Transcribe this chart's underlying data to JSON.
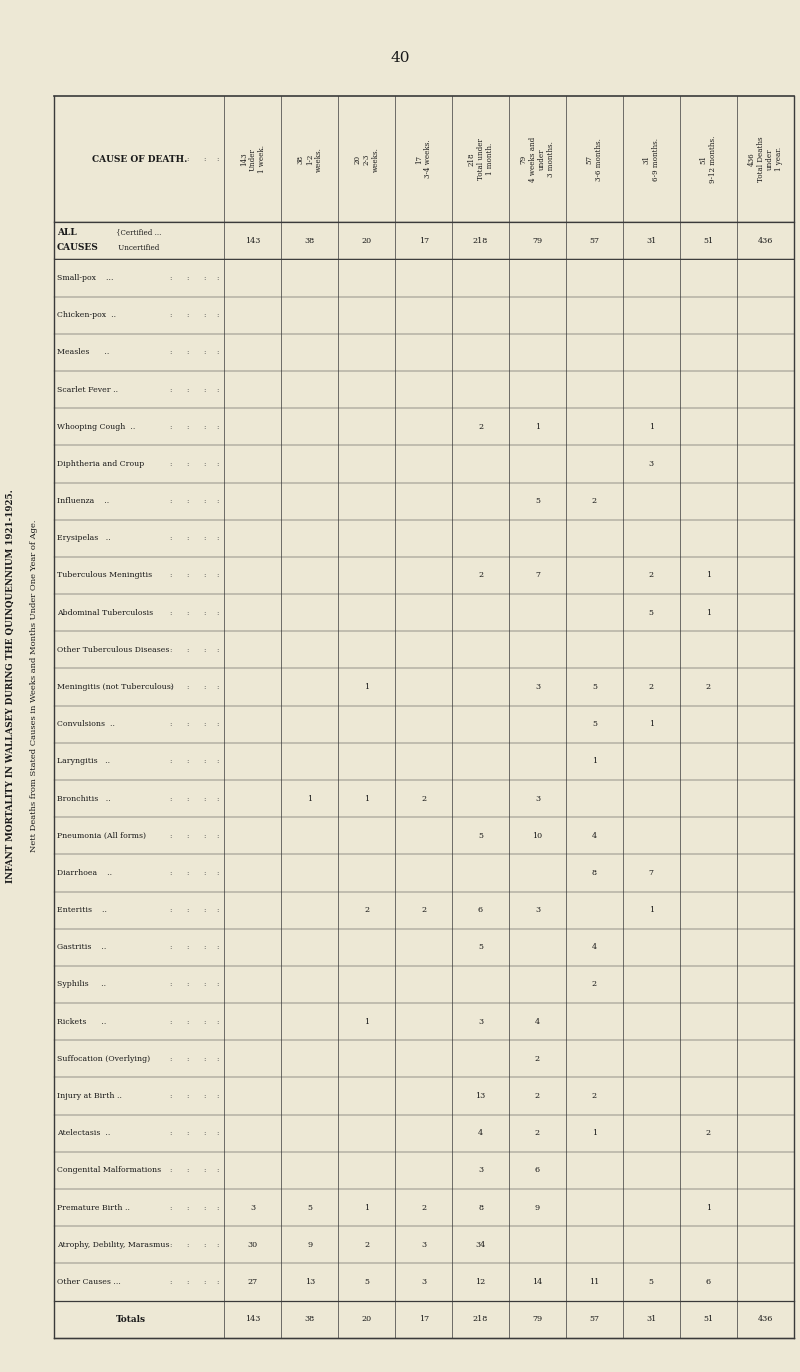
{
  "page_number": "40",
  "bg_color": "#ede8d5",
  "title_side1": "INFANT MORTALITY IN WALLASEY DURING THE QUINQUENNIUM 1921-1925.",
  "title_side2": "Nett Deaths from Stated Causes in Weeks and Months Under One Year of Age.",
  "col_headers": [
    "Under\n1 week.",
    "1-2\nweeks.",
    "2-3\nweeks.",
    "3-4 weeks.",
    "Total under\n1 month.",
    "4 weeks and\nunder\n3 months.",
    "3-6 months.",
    "6-9 months.",
    "9-12 months.",
    "Total Deaths\nunder\n1 year."
  ],
  "col_totals_header": [
    143,
    38,
    20,
    17,
    218,
    79,
    57,
    31,
    51,
    436
  ],
  "rows": [
    {
      "label": "ALL\nCAUSES",
      "sublabels": [
        "{Certified ...",
        " Uncertified"
      ],
      "bold": true,
      "bracket": false,
      "data": [
        143,
        38,
        20,
        17,
        218,
        79,
        57,
        31,
        51,
        436
      ]
    },
    {
      "label": "Small-pox    ...",
      "bold": false,
      "bracket": false,
      "dots": true,
      "data": [
        "",
        "",
        "",
        "",
        "",
        "",
        "",
        "",
        "",
        ""
      ]
    },
    {
      "label": "Chicken-pox  ..",
      "bold": false,
      "bracket": "open",
      "dots": true,
      "data": [
        "",
        "",
        "",
        "",
        "",
        "",
        "",
        "",
        "",
        ""
      ]
    },
    {
      "label": "Measles      ..",
      "bold": false,
      "bracket": false,
      "dots": true,
      "data": [
        "",
        "",
        "",
        "",
        "",
        "",
        "",
        "",
        "",
        ""
      ]
    },
    {
      "label": "Scarlet Fever ..",
      "bold": false,
      "bracket": "close",
      "dots": true,
      "data": [
        "",
        "",
        "",
        "",
        "",
        "",
        "",
        "",
        "",
        ""
      ]
    },
    {
      "label": "Whooping Cough  ..",
      "bold": false,
      "bracket": false,
      "dots": true,
      "data": [
        "",
        "",
        "",
        "",
        2,
        1,
        "",
        1,
        "",
        ""
      ]
    },
    {
      "label": "Diphtheria and Croup",
      "bold": false,
      "bracket": false,
      "dots": true,
      "data": [
        "",
        "",
        "",
        "",
        "",
        "",
        "",
        3,
        "",
        ""
      ]
    },
    {
      "label": "Influenza    ..",
      "bold": false,
      "bracket": false,
      "dots": true,
      "data": [
        "",
        "",
        "",
        "",
        "",
        5,
        2,
        "",
        "",
        ""
      ]
    },
    {
      "label": "Erysipelas   ..",
      "bold": false,
      "bracket": false,
      "dots": true,
      "data": [
        "",
        "",
        "",
        "",
        "",
        "",
        "",
        "",
        "",
        ""
      ]
    },
    {
      "label": "Tuberculous Meningitis",
      "bold": false,
      "bracket": "open",
      "dots": false,
      "data": [
        "",
        "",
        "",
        "",
        2,
        7,
        "",
        2,
        1,
        ""
      ]
    },
    {
      "label": "Abdominal Tuberculosis",
      "bold": false,
      "bracket": false,
      "dots": false,
      "data": [
        "",
        "",
        "",
        "",
        "",
        "",
        "",
        5,
        1,
        ""
      ]
    },
    {
      "label": "Other Tuberculous Diseases",
      "bold": false,
      "bracket": "close",
      "dots": false,
      "data": [
        "",
        "",
        "",
        "",
        "",
        "",
        "",
        "",
        "",
        ""
      ]
    },
    {
      "label": "Meningitis (not Tuberculous)",
      "bold": false,
      "bracket": false,
      "dots": false,
      "data": [
        "",
        "",
        1,
        "",
        "",
        3,
        5,
        2,
        2,
        ""
      ]
    },
    {
      "label": "Convulsions  ..",
      "bold": false,
      "bracket": false,
      "dots": true,
      "data": [
        "",
        "",
        "",
        "",
        "",
        "",
        5,
        1,
        "",
        ""
      ]
    },
    {
      "label": "Laryngitis   ..",
      "bold": false,
      "bracket": false,
      "dots": true,
      "data": [
        "",
        "",
        "",
        "",
        "",
        "",
        1,
        "",
        "",
        ""
      ]
    },
    {
      "label": "Bronchitis   ..",
      "bold": false,
      "bracket": false,
      "dots": true,
      "data": [
        "",
        1,
        1,
        2,
        "",
        3,
        "",
        "",
        "",
        ""
      ]
    },
    {
      "label": "Pneumonia (All forms)",
      "bold": false,
      "bracket": "open",
      "dots": false,
      "data": [
        "",
        "",
        "",
        "",
        5,
        10,
        4,
        "",
        "",
        ""
      ]
    },
    {
      "label": "Diarrhoea    ..",
      "bold": false,
      "bracket": false,
      "dots": true,
      "data": [
        "",
        "",
        "",
        "",
        "",
        "",
        8,
        7,
        "",
        ""
      ]
    },
    {
      "label": "Enteritis    ..",
      "bold": false,
      "bracket": false,
      "dots": true,
      "data": [
        "",
        "",
        2,
        2,
        6,
        3,
        "",
        1,
        "",
        ""
      ]
    },
    {
      "label": "Gastritis    ..",
      "bold": false,
      "bracket": false,
      "dots": true,
      "data": [
        "",
        "",
        "",
        "",
        5,
        "",
        4,
        "",
        "",
        ""
      ]
    },
    {
      "label": "Syphilis     ..",
      "bold": false,
      "bracket": false,
      "dots": true,
      "data": [
        "",
        "",
        "",
        "",
        "",
        "",
        2,
        "",
        "",
        ""
      ]
    },
    {
      "label": "Rickets      ..",
      "bold": false,
      "bracket": "close",
      "dots": true,
      "data": [
        "",
        "",
        1,
        "",
        3,
        4,
        "",
        "",
        "",
        ""
      ]
    },
    {
      "label": "Suffocation (Overlying)",
      "bold": false,
      "bracket": false,
      "dots": false,
      "data": [
        "",
        "",
        "",
        "",
        "",
        2,
        "",
        "",
        "",
        ""
      ]
    },
    {
      "label": "Injury at Birth ..",
      "bold": false,
      "bracket": false,
      "dots": true,
      "data": [
        "",
        "",
        "",
        "",
        13,
        2,
        2,
        "",
        "",
        ""
      ]
    },
    {
      "label": "Atelectasis  ..",
      "bold": false,
      "bracket": false,
      "dots": true,
      "data": [
        "",
        "",
        "",
        "",
        4,
        2,
        1,
        "",
        2,
        ""
      ]
    },
    {
      "label": "Congenital Malformations",
      "bold": false,
      "bracket": "open",
      "dots": false,
      "data": [
        "",
        "",
        "",
        "",
        3,
        6,
        "",
        "",
        "",
        ""
      ]
    },
    {
      "label": "Premature Birth ..",
      "bold": false,
      "bracket": false,
      "dots": true,
      "data": [
        3,
        5,
        1,
        2,
        8,
        9,
        "",
        "",
        1,
        ""
      ]
    },
    {
      "label": "Atrophy, Debility, Marasmus",
      "bold": false,
      "bracket": "close",
      "dots": false,
      "data": [
        30,
        9,
        2,
        3,
        34,
        "",
        "",
        "",
        "",
        ""
      ]
    },
    {
      "label": "Other Causes ...",
      "bold": false,
      "bracket": false,
      "dots": false,
      "data": [
        27,
        13,
        5,
        3,
        12,
        14,
        11,
        5,
        6,
        ""
      ]
    },
    {
      "label": "Totals",
      "bold": true,
      "bracket": false,
      "dots": false,
      "data": [
        143,
        38,
        20,
        17,
        218,
        79,
        57,
        31,
        51,
        436
      ]
    }
  ]
}
